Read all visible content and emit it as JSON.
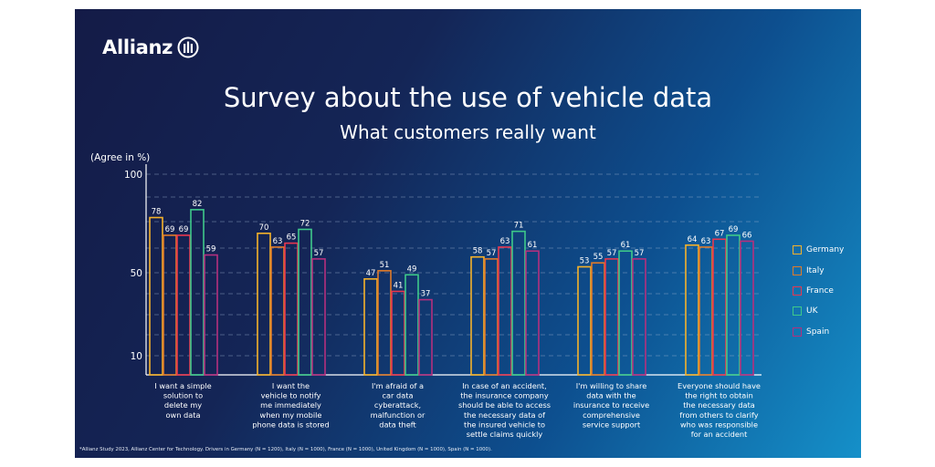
{
  "brand": {
    "name": "Allianz",
    "logo_icon": "allianz-eagle-roundel-icon"
  },
  "title": "Survey about the use of vehicle data",
  "subtitle": "What customers really want",
  "footnote": "*Allianz Study 2023, Allianz Center for Technology. Drivers in Germany (N = 1200), Italy (N = 1000), France (N = 1000), United Kingdom (N = 1000), Spain (N = 1000).",
  "chart_data": {
    "type": "bar",
    "ylabel": "(Agree in %)",
    "yticks": [
      10,
      50,
      100
    ],
    "categories": [
      [
        "I want a simple",
        "solution to",
        "delete my",
        "own data"
      ],
      [
        "I want the",
        "vehicle to notify",
        "me immediately",
        "when my mobile",
        "phone data is stored"
      ],
      [
        "I'm afraid of a",
        "car data",
        "cyberattack,",
        "malfunction or",
        "data theft"
      ],
      [
        "In case of an accident,",
        "the insurance company",
        "should be able to access",
        "the necessary data of",
        "the insured vehicle to",
        "settle claims quickly"
      ],
      [
        "I'm willing to share",
        "data with the",
        "insurance to receive",
        "comprehensive",
        "service support"
      ],
      [
        "Everyone should have",
        "the right to obtain",
        "the necessary data",
        "from others to clarify",
        "who was responsible",
        "for an accident"
      ]
    ],
    "series": [
      {
        "name": "Germany",
        "color": "#f5b22a",
        "values": [
          78,
          70,
          47,
          58,
          53,
          64
        ]
      },
      {
        "name": "Italy",
        "color": "#e07b2a",
        "values": [
          69,
          63,
          51,
          57,
          55,
          63
        ]
      },
      {
        "name": "France",
        "color": "#e8384f",
        "values": [
          69,
          65,
          41,
          63,
          57,
          67
        ]
      },
      {
        "name": "UK",
        "color": "#3ec98a",
        "values": [
          82,
          72,
          49,
          71,
          61,
          69
        ]
      },
      {
        "name": "Spain",
        "color": "#b4307e",
        "values": [
          59,
          57,
          37,
          61,
          57,
          66
        ]
      }
    ],
    "legend_position": "right",
    "grid": true
  }
}
